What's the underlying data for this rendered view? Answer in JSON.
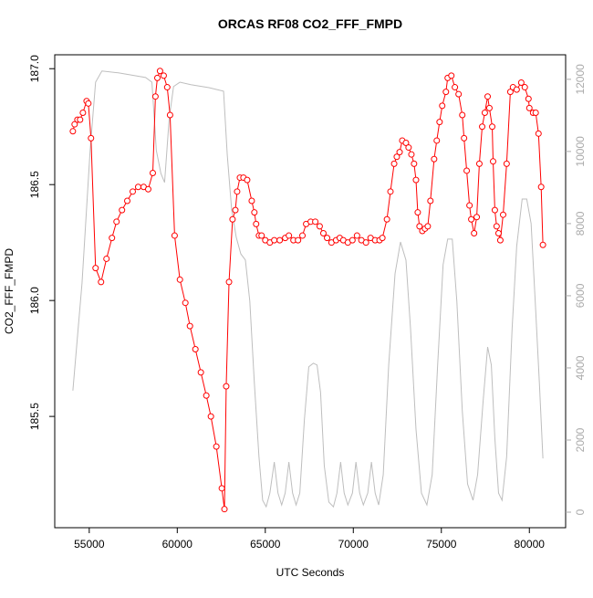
{
  "chart_data": {
    "type": "line",
    "title": "ORCAS RF08 CO2_FFF_FMPD",
    "xlabel": "UTC Seconds",
    "ylabel": "CO2_FFF_FMPD",
    "xlim": [
      53040,
      82060
    ],
    "ylim": [
      185.02,
      187.06
    ],
    "y2lim": [
      -430,
      12680
    ],
    "xticks": [
      55000,
      60000,
      65000,
      70000,
      75000,
      80000
    ],
    "yticks": [
      185.5,
      {
        "value": 186,
        "label": "186.0"
      },
      186.5,
      {
        "value": 187,
        "label": "187.0"
      }
    ],
    "y2ticks": [
      0,
      2000,
      4000,
      6000,
      8000,
      10000,
      12000
    ],
    "y2color": "#aaaaaa",
    "series": [
      {
        "color": "#ff0000",
        "markers": true,
        "axis": "y",
        "x": [
          54070,
          54170,
          54330,
          54480,
          54640,
          54850,
          54950,
          55100,
          55360,
          55670,
          55980,
          56290,
          56550,
          56860,
          57160,
          57470,
          57780,
          58090,
          58350,
          58610,
          58760,
          58870,
          59020,
          59230,
          59430,
          59590,
          59850,
          60150,
          60460,
          60720,
          61030,
          61340,
          61650,
          61910,
          62220,
          62530,
          62680,
          62780,
          62940,
          63140,
          63300,
          63400,
          63560,
          63760,
          63970,
          64230,
          64380,
          64480,
          64640,
          64790,
          65000,
          65260,
          65510,
          65820,
          66130,
          66340,
          66600,
          66860,
          67110,
          67320,
          67580,
          67840,
          68090,
          68300,
          68510,
          68760,
          69020,
          69230,
          69430,
          69690,
          69950,
          70210,
          70460,
          70720,
          70980,
          71240,
          71490,
          71650,
          71910,
          72110,
          72320,
          72470,
          72630,
          72780,
          72990,
          73140,
          73300,
          73450,
          73560,
          73660,
          73760,
          73920,
          74070,
          74230,
          74380,
          74590,
          74740,
          74900,
          75050,
          75260,
          75360,
          75570,
          75770,
          75980,
          76190,
          76290,
          76440,
          76600,
          76700,
          76860,
          77010,
          77160,
          77320,
          77470,
          77630,
          77730,
          77890,
          77940,
          78040,
          78140,
          78250,
          78350,
          78510,
          78710,
          78920,
          79070,
          79280,
          79540,
          79740,
          79950,
          80000,
          80210,
          80360,
          80520,
          80670,
          80770
        ],
        "values": [
          186.73,
          186.76,
          186.78,
          186.78,
          186.81,
          186.86,
          186.85,
          186.7,
          186.14,
          186.08,
          186.18,
          186.27,
          186.34,
          186.39,
          186.43,
          186.47,
          186.49,
          186.49,
          186.48,
          186.55,
          186.88,
          186.96,
          186.99,
          186.97,
          186.92,
          186.8,
          186.28,
          186.09,
          185.99,
          185.89,
          185.79,
          185.69,
          185.59,
          185.5,
          185.37,
          185.19,
          185.1,
          185.63,
          186.08,
          186.35,
          186.39,
          186.47,
          186.53,
          186.53,
          186.52,
          186.43,
          186.38,
          186.33,
          186.28,
          186.28,
          186.26,
          186.25,
          186.26,
          186.26,
          186.27,
          186.28,
          186.26,
          186.26,
          186.28,
          186.33,
          186.34,
          186.34,
          186.32,
          186.29,
          186.27,
          186.25,
          186.26,
          186.27,
          186.26,
          186.25,
          186.26,
          186.28,
          186.26,
          186.25,
          186.27,
          186.26,
          186.26,
          186.27,
          186.35,
          186.47,
          186.59,
          186.62,
          186.64,
          186.69,
          186.68,
          186.66,
          186.63,
          186.59,
          186.52,
          186.38,
          186.32,
          186.3,
          186.31,
          186.32,
          186.43,
          186.61,
          186.69,
          186.77,
          186.84,
          186.9,
          186.96,
          186.97,
          186.92,
          186.89,
          186.8,
          186.7,
          186.56,
          186.41,
          186.35,
          186.29,
          186.36,
          186.59,
          186.75,
          186.81,
          186.88,
          186.83,
          186.75,
          186.6,
          186.39,
          186.32,
          186.29,
          186.26,
          186.37,
          186.59,
          186.9,
          186.92,
          186.91,
          186.94,
          186.92,
          186.87,
          186.83,
          186.81,
          186.81,
          186.72,
          186.49,
          186.24
        ]
      },
      {
        "color": "#bebebe",
        "markers": false,
        "axis": "y2",
        "x": [
          54070,
          54590,
          55050,
          55360,
          55720,
          56650,
          58200,
          58560,
          58810,
          59070,
          59280,
          59540,
          59790,
          60150,
          60770,
          61800,
          62630,
          62840,
          63090,
          63350,
          63610,
          63870,
          64120,
          64380,
          64640,
          64850,
          65050,
          65260,
          65510,
          65720,
          65930,
          66130,
          66340,
          66550,
          66750,
          66960,
          67220,
          67470,
          67730,
          67940,
          68140,
          68350,
          68610,
          68870,
          69070,
          69280,
          69480,
          69690,
          69950,
          70150,
          70360,
          70570,
          70820,
          71030,
          71240,
          71440,
          71700,
          72010,
          72370,
          72680,
          72990,
          73250,
          73560,
          73870,
          74180,
          74480,
          74790,
          75100,
          75360,
          75620,
          75880,
          76190,
          76490,
          76800,
          77060,
          77370,
          77630,
          77840,
          78040,
          78250,
          78450,
          78710,
          79020,
          79280,
          79590,
          79850,
          80100,
          80360,
          80570,
          80770
        ],
        "values": [
          3370,
          6350,
          10030,
          11920,
          12230,
          12180,
          12050,
          11920,
          10030,
          9390,
          9140,
          10910,
          11800,
          11920,
          11850,
          11770,
          11670,
          9900,
          8380,
          7620,
          7160,
          6990,
          5850,
          3570,
          1540,
          330,
          150,
          530,
          1390,
          530,
          200,
          530,
          1390,
          530,
          200,
          530,
          2560,
          4030,
          4130,
          4080,
          3320,
          1290,
          280,
          150,
          530,
          1390,
          530,
          200,
          530,
          1390,
          530,
          200,
          530,
          1390,
          530,
          200,
          1040,
          4080,
          6610,
          7490,
          6990,
          5090,
          2300,
          530,
          200,
          1040,
          4080,
          6860,
          7570,
          7570,
          5850,
          2810,
          780,
          330,
          1040,
          3060,
          4580,
          4080,
          2050,
          530,
          330,
          1540,
          5090,
          7370,
          8680,
          8680,
          8000,
          5590,
          3570,
          1490
        ]
      }
    ]
  }
}
